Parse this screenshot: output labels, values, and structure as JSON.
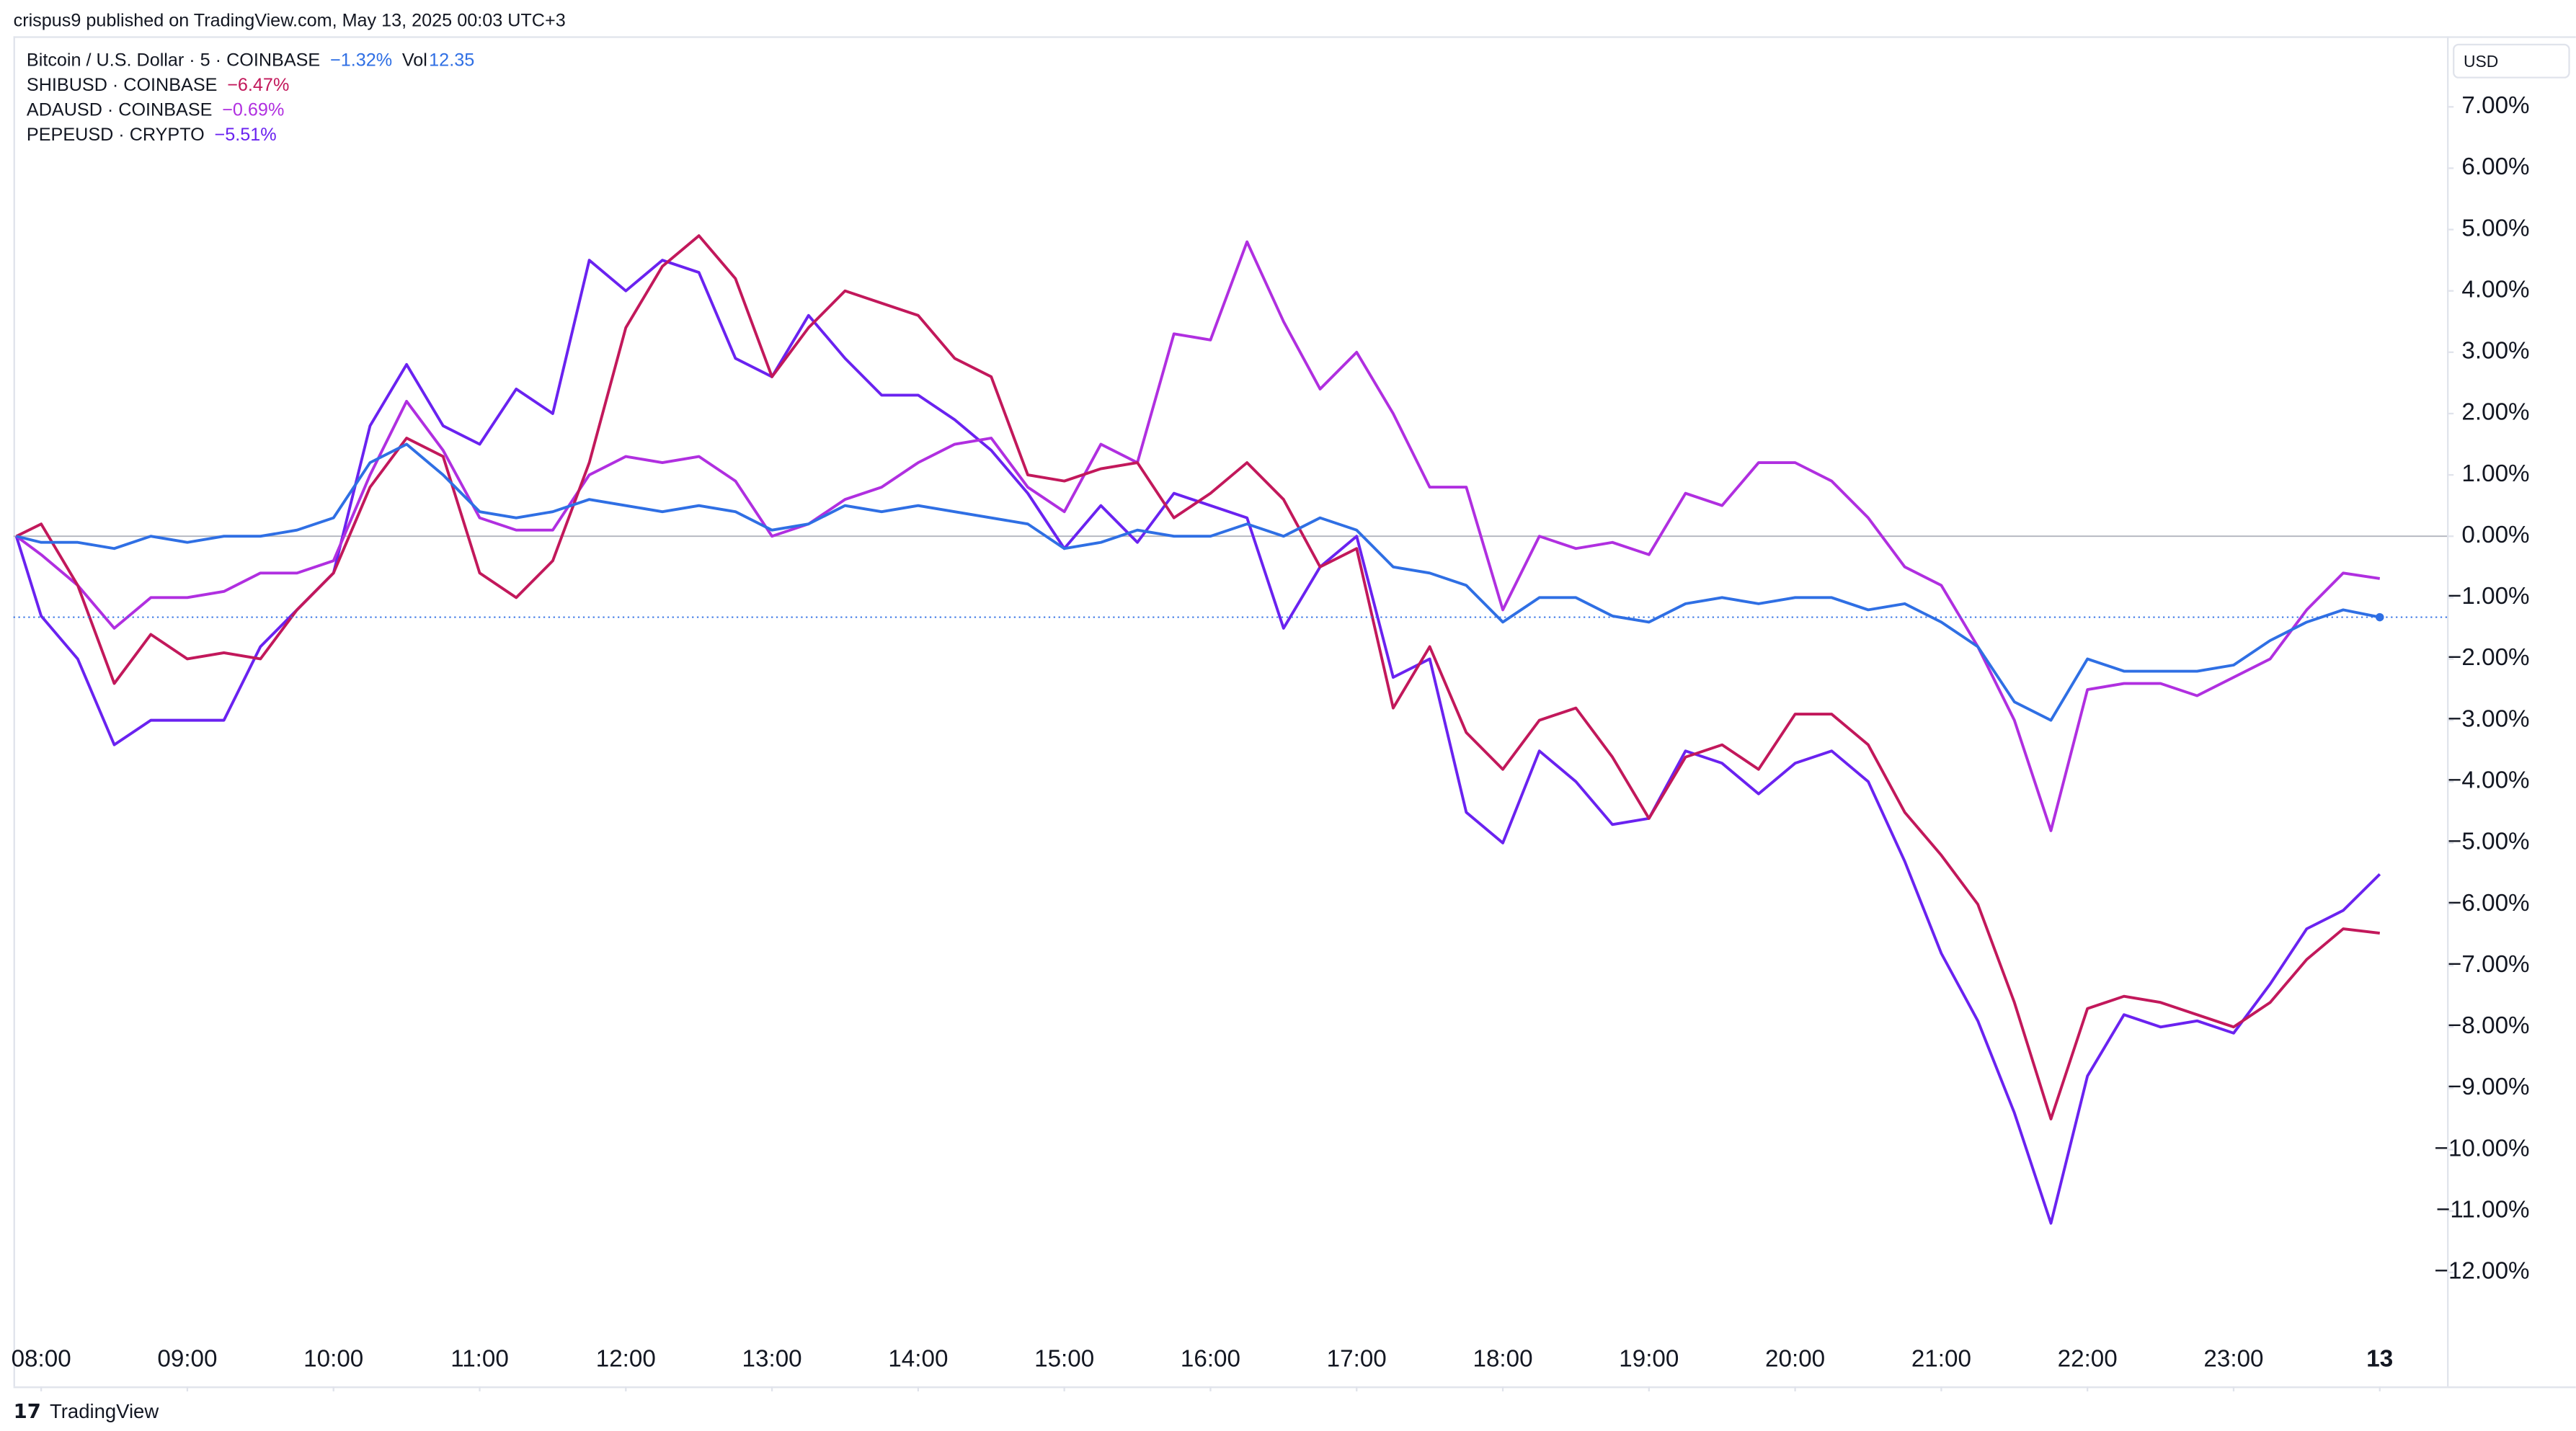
{
  "header": "crispus9 published on TradingView.com, May 13, 2025 00:03 UTC+3",
  "currency": "USD",
  "footer": "TradingView",
  "chart_data": {
    "type": "line",
    "x": [
      7.83,
      8,
      8.25,
      8.5,
      8.75,
      9,
      9.25,
      9.5,
      9.75,
      10,
      10.25,
      10.5,
      10.75,
      11,
      11.25,
      11.5,
      11.75,
      12,
      12.25,
      12.5,
      12.75,
      13,
      13.25,
      13.5,
      13.75,
      14,
      14.25,
      14.5,
      14.75,
      15,
      15.25,
      15.5,
      15.75,
      16,
      16.25,
      16.5,
      16.75,
      17,
      17.25,
      17.5,
      17.75,
      18,
      18.25,
      18.5,
      18.75,
      19,
      19.25,
      19.5,
      19.75,
      20,
      20.25,
      20.5,
      20.75,
      21,
      21.25,
      21.5,
      21.75,
      22,
      22.25,
      22.5,
      22.75,
      23,
      23.25,
      23.5,
      23.75,
      24
    ],
    "xlim": [
      7.81,
      24.46
    ],
    "xticks": [
      {
        "value": 8,
        "label": "08:00"
      },
      {
        "value": 9,
        "label": "09:00"
      },
      {
        "value": 10,
        "label": "10:00"
      },
      {
        "value": 11,
        "label": "11:00"
      },
      {
        "value": 12,
        "label": "12:00"
      },
      {
        "value": 13,
        "label": "13:00"
      },
      {
        "value": 14,
        "label": "14:00"
      },
      {
        "value": 15,
        "label": "15:00"
      },
      {
        "value": 16,
        "label": "16:00"
      },
      {
        "value": 17,
        "label": "17:00"
      },
      {
        "value": 18,
        "label": "18:00"
      },
      {
        "value": 19,
        "label": "19:00"
      },
      {
        "value": 20,
        "label": "20:00"
      },
      {
        "value": 21,
        "label": "21:00"
      },
      {
        "value": 22,
        "label": "22:00"
      },
      {
        "value": 23,
        "label": "23:00"
      },
      {
        "value": 24,
        "label": "13"
      }
    ],
    "ylim": [
      -13.86,
      8.15
    ],
    "yticks": [
      {
        "value": 7,
        "label": "7.00%"
      },
      {
        "value": 6,
        "label": "6.00%"
      },
      {
        "value": 5,
        "label": "5.00%"
      },
      {
        "value": 4,
        "label": "4.00%"
      },
      {
        "value": 3,
        "label": "3.00%"
      },
      {
        "value": 2,
        "label": "2.00%"
      },
      {
        "value": 1,
        "label": "1.00%"
      },
      {
        "value": 0,
        "label": "0.00%"
      },
      {
        "value": -1,
        "label": "−1.00%"
      },
      {
        "value": -2,
        "label": "−2.00%"
      },
      {
        "value": -3,
        "label": "−3.00%"
      },
      {
        "value": -4,
        "label": "−4.00%"
      },
      {
        "value": -5,
        "label": "−5.00%"
      },
      {
        "value": -6,
        "label": "−6.00%"
      },
      {
        "value": -7,
        "label": "−7.00%"
      },
      {
        "value": -8,
        "label": "−8.00%"
      },
      {
        "value": -9,
        "label": "−9.00%"
      },
      {
        "value": -10,
        "label": "−10.00%"
      },
      {
        "value": -11,
        "label": "−11.00%"
      },
      {
        "value": -12,
        "label": "−12.00%"
      }
    ],
    "series": [
      {
        "name": "Bitcoin / U.S. Dollar · 5 · COINBASE",
        "change": "−1.32%",
        "volume_label": "Vol",
        "volume": "12.35",
        "color": "#2f6fe4",
        "values": [
          0,
          -0.1,
          -0.1,
          -0.2,
          0,
          -0.1,
          0,
          0,
          0.1,
          0.3,
          1.2,
          1.5,
          1.0,
          0.4,
          0.3,
          0.4,
          0.6,
          0.5,
          0.4,
          0.5,
          0.4,
          0.1,
          0.2,
          0.5,
          0.4,
          0.5,
          0.4,
          0.3,
          0.2,
          -0.2,
          -0.1,
          0.1,
          0,
          0,
          0.2,
          0,
          0.3,
          0.1,
          -0.5,
          -0.6,
          -0.8,
          -1.4,
          -1.0,
          -1.0,
          -1.3,
          -1.4,
          -1.1,
          -1.0,
          -1.1,
          -1.0,
          -1.0,
          -1.2,
          -1.1,
          -1.4,
          -1.8,
          -2.7,
          -3.0,
          -2.0,
          -2.2,
          -2.2,
          -2.2,
          -2.1,
          -1.7,
          -1.4,
          -1.2,
          -1.32
        ]
      },
      {
        "name": "SHIBUSD · COINBASE",
        "change": "−6.47%",
        "color": "#c2185b",
        "values": [
          0,
          0.2,
          -0.8,
          -2.4,
          -1.6,
          -2.0,
          -1.9,
          -2.0,
          -1.2,
          -0.6,
          0.8,
          1.6,
          1.3,
          -0.6,
          -1.0,
          -0.4,
          1.2,
          3.4,
          4.4,
          4.9,
          4.2,
          2.6,
          3.4,
          4.0,
          3.8,
          3.6,
          2.9,
          2.6,
          1.0,
          0.9,
          1.1,
          1.2,
          0.3,
          0.7,
          1.2,
          0.6,
          -0.5,
          -0.2,
          -2.8,
          -1.8,
          -3.2,
          -3.8,
          -3.0,
          -2.8,
          -3.6,
          -4.6,
          -3.6,
          -3.4,
          -3.8,
          -2.9,
          -2.9,
          -3.4,
          -4.5,
          -5.2,
          -6.0,
          -7.6,
          -9.5,
          -7.7,
          -7.5,
          -7.6,
          -7.8,
          -8.0,
          -7.6,
          -6.9,
          -6.4,
          -6.47
        ]
      },
      {
        "name": "ADAUSD · COINBASE",
        "change": "−0.69%",
        "color": "#b02fe0",
        "values": [
          0,
          -0.3,
          -0.8,
          -1.5,
          -1.0,
          -1.0,
          -0.9,
          -0.6,
          -0.6,
          -0.4,
          1.0,
          2.2,
          1.4,
          0.3,
          0.1,
          0.1,
          1.0,
          1.3,
          1.2,
          1.3,
          0.9,
          0,
          0.2,
          0.6,
          0.8,
          1.2,
          1.5,
          1.6,
          0.8,
          0.4,
          1.5,
          1.2,
          3.3,
          3.2,
          4.8,
          3.5,
          2.4,
          3.0,
          2.0,
          0.8,
          0.8,
          -1.2,
          0,
          -0.2,
          -0.1,
          -0.3,
          0.7,
          0.5,
          1.2,
          1.2,
          0.9,
          0.3,
          -0.5,
          -0.8,
          -1.8,
          -3.0,
          -4.8,
          -2.5,
          -2.4,
          -2.4,
          -2.6,
          -2.3,
          -2.0,
          -1.2,
          -0.6,
          -0.69
        ]
      },
      {
        "name": "PEPEUSD · CRYPTO",
        "change": "−5.51%",
        "color": "#6a22f0",
        "values": [
          0,
          -1.3,
          -2.0,
          -3.4,
          -3.0,
          -3.0,
          -3.0,
          -1.8,
          -1.2,
          -0.6,
          1.8,
          2.8,
          1.8,
          1.5,
          2.4,
          2.0,
          4.5,
          4.0,
          4.5,
          4.3,
          2.9,
          2.6,
          3.6,
          2.9,
          2.3,
          2.3,
          1.9,
          1.4,
          0.7,
          -0.2,
          0.5,
          -0.1,
          0.7,
          0.5,
          0.3,
          -1.5,
          -0.5,
          0,
          -2.3,
          -2.0,
          -4.5,
          -5.0,
          -3.5,
          -4.0,
          -4.7,
          -4.6,
          -3.5,
          -3.7,
          -4.2,
          -3.7,
          -3.5,
          -4.0,
          -5.3,
          -6.8,
          -7.9,
          -9.4,
          -11.2,
          -8.8,
          -7.8,
          -8.0,
          -7.9,
          -8.1,
          -7.3,
          -6.4,
          -6.1,
          -5.51
        ]
      }
    ]
  }
}
